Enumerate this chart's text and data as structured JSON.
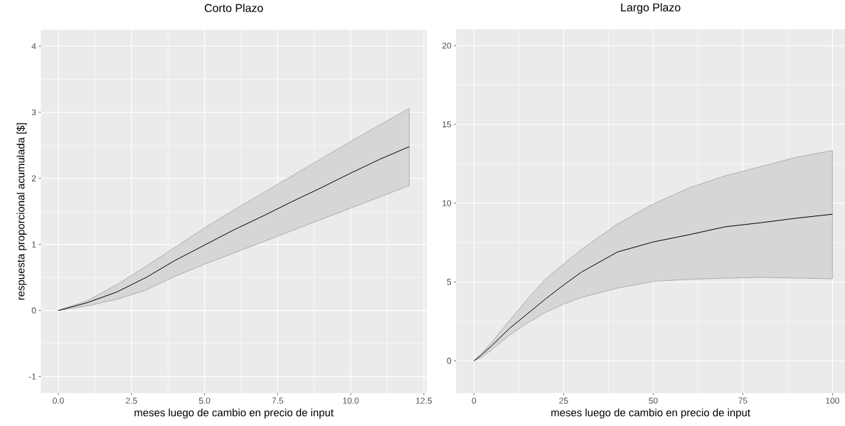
{
  "chart_data": [
    {
      "type": "line",
      "title": "Corto Plazo",
      "xlabel": "meses luego de cambio en precio de input",
      "ylabel": "respuesta proporcional acumulada   [$]",
      "x": [
        0,
        1,
        2,
        3,
        4,
        5,
        6,
        7,
        8,
        9,
        10,
        11,
        12
      ],
      "series": [
        {
          "color": "#000000",
          "values": [
            0,
            0.12,
            0.28,
            0.5,
            0.76,
            0.99,
            1.22,
            1.43,
            1.65,
            1.86,
            2.08,
            2.29,
            2.48
          ],
          "lower": [
            0,
            0.07,
            0.17,
            0.31,
            0.52,
            0.7,
            0.87,
            1.04,
            1.21,
            1.38,
            1.55,
            1.72,
            1.89
          ],
          "upper": [
            0,
            0.15,
            0.39,
            0.67,
            0.96,
            1.25,
            1.52,
            1.78,
            2.04,
            2.3,
            2.56,
            2.81,
            3.06
          ]
        }
      ],
      "xlim": [
        -0.6,
        12.6
      ],
      "ylim": [
        -1.25,
        4.25
      ],
      "xticks": [
        {
          "value": 0,
          "label": "0.0"
        },
        {
          "value": 2.5,
          "label": "2.5"
        },
        {
          "value": 5,
          "label": "5.0"
        },
        {
          "value": 7.5,
          "label": "7.5"
        },
        {
          "value": 10,
          "label": "10.0"
        },
        {
          "value": 12.5,
          "label": "12.5"
        }
      ],
      "yticks": [
        -1,
        0,
        1,
        2,
        3,
        4
      ],
      "grid": true
    },
    {
      "type": "line",
      "title": "Largo Plazo",
      "xlabel": "meses luego de cambio en precio de input",
      "x": [
        0,
        2,
        5,
        10,
        15,
        20,
        25,
        30,
        40,
        50,
        60,
        70,
        80,
        90,
        100
      ],
      "series": [
        {
          "color": "#000000",
          "values": [
            0,
            0.35,
            0.97,
            2.07,
            3.0,
            3.93,
            4.81,
            5.63,
            6.9,
            7.54,
            8.0,
            8.5,
            8.76,
            9.05,
            9.3
          ],
          "lower": [
            0,
            0.2,
            0.71,
            1.64,
            2.41,
            3.08,
            3.59,
            4.02,
            4.61,
            5.03,
            5.17,
            5.24,
            5.29,
            5.25,
            5.2
          ],
          "upper": [
            0,
            0.45,
            1.19,
            2.58,
            3.93,
            5.2,
            6.14,
            7.07,
            8.68,
            9.95,
            10.97,
            11.73,
            12.32,
            12.92,
            13.34
          ]
        }
      ],
      "xlim": [
        -5,
        103.5
      ],
      "ylim": [
        -2.05,
        21.05
      ],
      "xticks": [
        0,
        25,
        50,
        75,
        100
      ],
      "yticks": [
        0,
        5,
        10,
        15,
        20
      ],
      "grid": true
    }
  ]
}
